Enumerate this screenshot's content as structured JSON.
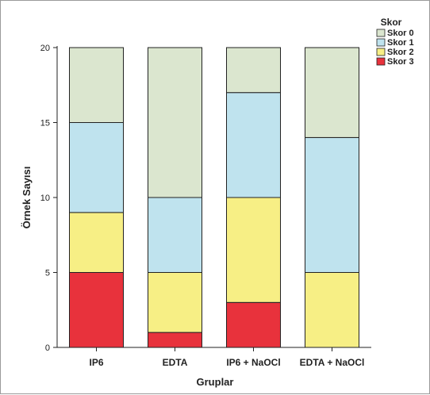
{
  "chart_data": {
    "type": "bar",
    "stacked": true,
    "xlabel": "Gruplar",
    "ylabel": "Örnek Sayısı",
    "ylim": [
      0,
      20
    ],
    "yticks": [
      0,
      5,
      10,
      15,
      20
    ],
    "categories": [
      "IP6",
      "EDTA",
      "IP6 + NaOCl",
      "EDTA + NaOCl"
    ],
    "legend_title": "Skor",
    "legend_position": "top-right",
    "series": [
      {
        "name": "Skor 3",
        "color": "#e8323c",
        "values": [
          5,
          1,
          3,
          0
        ]
      },
      {
        "name": "Skor 2",
        "color": "#f7ef85",
        "values": [
          4,
          4,
          7,
          5
        ]
      },
      {
        "name": "Skor 1",
        "color": "#bfe3ee",
        "values": [
          6,
          5,
          7,
          9
        ]
      },
      {
        "name": "Skor 0",
        "color": "#dbe6cf",
        "values": [
          5,
          10,
          3,
          6
        ]
      }
    ],
    "legend_order": [
      "Skor 0",
      "Skor 1",
      "Skor 2",
      "Skor 3"
    ],
    "grid": false
  }
}
